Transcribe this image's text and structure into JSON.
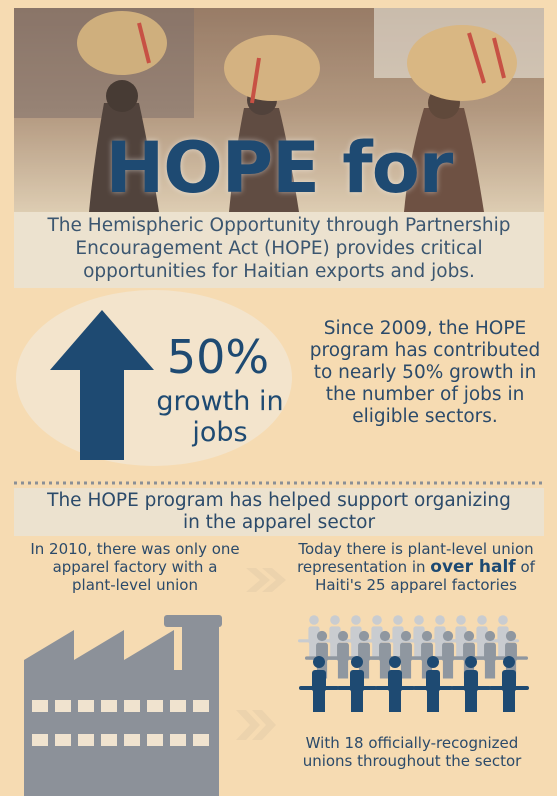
{
  "header": {
    "title": "HOPE for Haiti"
  },
  "intro": "The Hemispheric Opportunity through Partnership Encouragement Act (HOPE) provides critical opportunities for Haitian exports and jobs.",
  "stat": {
    "figure": "50%",
    "caption": "growth in jobs",
    "description": "Since 2009, the HOPE program has contributed to nearly 50% growth in the number of jobs in eligible sectors."
  },
  "organizing": {
    "heading": "The HOPE program has helped support organizing in the apparel sector",
    "before": "In 2010, there was only one apparel factory with a plant-level union",
    "after": {
      "prefix": "Today there is plant-level union representation in",
      "emphasis": "over half",
      "suffix": "of Haiti's 25 apparel factories"
    },
    "unions": "With 18 officially-recognized unions throughout the sector"
  }
}
